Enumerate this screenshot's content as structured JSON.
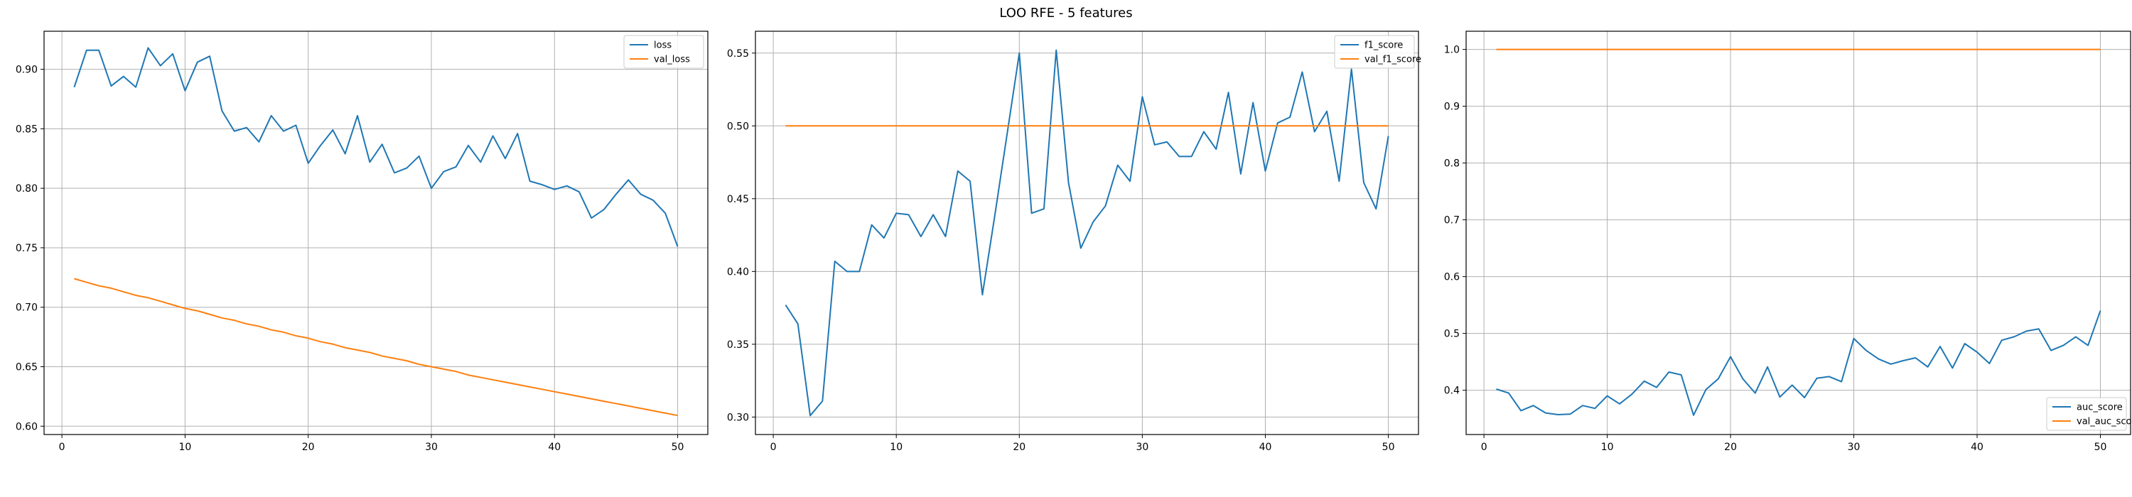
{
  "figure": {
    "title": "LOO RFE - 5 features"
  },
  "colors": {
    "series_1": "#1f77b4",
    "series_2": "#ff7f0e",
    "grid": "#b0b0b0",
    "axis": "#000000"
  },
  "chart_data": [
    {
      "type": "line",
      "title": "",
      "xlabel": "",
      "ylabel": "",
      "xlim": [
        -1.45,
        52.45
      ],
      "ylim": [
        0.593,
        0.932
      ],
      "xticks": [
        0,
        10,
        20,
        30,
        40,
        50
      ],
      "yticks": [
        0.6,
        0.65,
        0.7,
        0.75,
        0.8,
        0.85,
        0.9
      ],
      "ytick_labels": [
        "0.60",
        "0.65",
        "0.70",
        "0.75",
        "0.80",
        "0.85",
        "0.90"
      ],
      "grid": true,
      "legend_position": "upper right",
      "x": [
        1,
        2,
        3,
        4,
        5,
        6,
        7,
        8,
        9,
        10,
        11,
        12,
        13,
        14,
        15,
        16,
        17,
        18,
        19,
        20,
        21,
        22,
        23,
        24,
        25,
        26,
        27,
        28,
        29,
        30,
        31,
        32,
        33,
        34,
        35,
        36,
        37,
        38,
        39,
        40,
        41,
        42,
        43,
        44,
        45,
        46,
        47,
        48,
        49,
        50
      ],
      "series": [
        {
          "name": "loss",
          "values": [
            0.885,
            0.916,
            0.916,
            0.886,
            0.894,
            0.885,
            0.918,
            0.903,
            0.913,
            0.882,
            0.906,
            0.911,
            0.865,
            0.848,
            0.851,
            0.839,
            0.861,
            0.848,
            0.853,
            0.821,
            0.836,
            0.849,
            0.829,
            0.861,
            0.822,
            0.837,
            0.813,
            0.817,
            0.827,
            0.8,
            0.814,
            0.818,
            0.836,
            0.822,
            0.844,
            0.825,
            0.846,
            0.806,
            0.803,
            0.799,
            0.802,
            0.797,
            0.775,
            0.782,
            0.795,
            0.807,
            0.795,
            0.79,
            0.779,
            0.751
          ]
        },
        {
          "name": "val_loss",
          "values": [
            0.724,
            0.721,
            0.718,
            0.716,
            0.713,
            0.71,
            0.708,
            0.705,
            0.702,
            0.699,
            0.697,
            0.694,
            0.691,
            0.689,
            0.686,
            0.684,
            0.681,
            0.679,
            0.676,
            0.674,
            0.671,
            0.669,
            0.666,
            0.664,
            0.662,
            0.659,
            0.657,
            0.655,
            0.652,
            0.65,
            0.648,
            0.646,
            0.643,
            0.641,
            0.639,
            0.637,
            0.635,
            0.633,
            0.631,
            0.629,
            0.627,
            0.625,
            0.623,
            0.621,
            0.619,
            0.617,
            0.615,
            0.613,
            0.611,
            0.609
          ]
        }
      ]
    },
    {
      "type": "line",
      "title": "",
      "xlabel": "",
      "ylabel": "",
      "xlim": [
        -1.45,
        52.45
      ],
      "ylim": [
        0.288,
        0.565
      ],
      "xticks": [
        0,
        10,
        20,
        30,
        40,
        50
      ],
      "yticks": [
        0.3,
        0.35,
        0.4,
        0.45,
        0.5,
        0.55
      ],
      "ytick_labels": [
        "0.30",
        "0.35",
        "0.40",
        "0.45",
        "0.50",
        "0.55"
      ],
      "grid": true,
      "legend_position": "upper right",
      "x": [
        1,
        2,
        3,
        4,
        5,
        6,
        7,
        8,
        9,
        10,
        11,
        12,
        13,
        14,
        15,
        16,
        17,
        18,
        19,
        20,
        21,
        22,
        23,
        24,
        25,
        26,
        27,
        28,
        29,
        30,
        31,
        32,
        33,
        34,
        35,
        36,
        37,
        38,
        39,
        40,
        41,
        42,
        43,
        44,
        45,
        46,
        47,
        48,
        49,
        50
      ],
      "series": [
        {
          "name": "f1_score",
          "values": [
            0.377,
            0.364,
            0.301,
            0.311,
            0.407,
            0.4,
            0.4,
            0.432,
            0.423,
            0.44,
            0.439,
            0.424,
            0.439,
            0.424,
            0.469,
            0.462,
            0.384,
            0.438,
            0.494,
            0.55,
            0.44,
            0.443,
            0.552,
            0.461,
            0.416,
            0.434,
            0.445,
            0.473,
            0.462,
            0.52,
            0.487,
            0.489,
            0.479,
            0.479,
            0.496,
            0.484,
            0.523,
            0.467,
            0.516,
            0.469,
            0.502,
            0.506,
            0.537,
            0.496,
            0.51,
            0.462,
            0.539,
            0.461,
            0.443,
            0.493
          ]
        },
        {
          "name": "val_f1_score",
          "values": [
            0.5,
            0.5,
            0.5,
            0.5,
            0.5,
            0.5,
            0.5,
            0.5,
            0.5,
            0.5,
            0.5,
            0.5,
            0.5,
            0.5,
            0.5,
            0.5,
            0.5,
            0.5,
            0.5,
            0.5,
            0.5,
            0.5,
            0.5,
            0.5,
            0.5,
            0.5,
            0.5,
            0.5,
            0.5,
            0.5,
            0.5,
            0.5,
            0.5,
            0.5,
            0.5,
            0.5,
            0.5,
            0.5,
            0.5,
            0.5,
            0.5,
            0.5,
            0.5,
            0.5,
            0.5,
            0.5,
            0.5,
            0.5,
            0.5,
            0.5
          ]
        }
      ]
    },
    {
      "type": "line",
      "title": "",
      "xlabel": "",
      "ylabel": "",
      "xlim": [
        -1.45,
        52.45
      ],
      "ylim": [
        0.322,
        1.032
      ],
      "xticks": [
        0,
        10,
        20,
        30,
        40,
        50
      ],
      "yticks": [
        0.4,
        0.5,
        0.6,
        0.7,
        0.8,
        0.9,
        1.0
      ],
      "ytick_labels": [
        "0.4",
        "0.5",
        "0.6",
        "0.7",
        "0.8",
        "0.9",
        "1.0"
      ],
      "grid": true,
      "legend_position": "lower right",
      "x": [
        1,
        2,
        3,
        4,
        5,
        6,
        7,
        8,
        9,
        10,
        11,
        12,
        13,
        14,
        15,
        16,
        17,
        18,
        19,
        20,
        21,
        22,
        23,
        24,
        25,
        26,
        27,
        28,
        29,
        30,
        31,
        32,
        33,
        34,
        35,
        36,
        37,
        38,
        39,
        40,
        41,
        42,
        43,
        44,
        45,
        46,
        47,
        48,
        49,
        50
      ],
      "series": [
        {
          "name": "auc_score",
          "values": [
            0.402,
            0.395,
            0.364,
            0.373,
            0.36,
            0.357,
            0.358,
            0.373,
            0.368,
            0.39,
            0.376,
            0.393,
            0.416,
            0.405,
            0.432,
            0.427,
            0.356,
            0.401,
            0.42,
            0.459,
            0.42,
            0.395,
            0.441,
            0.388,
            0.409,
            0.387,
            0.421,
            0.424,
            0.415,
            0.491,
            0.47,
            0.455,
            0.446,
            0.452,
            0.457,
            0.441,
            0.477,
            0.439,
            0.482,
            0.467,
            0.447,
            0.488,
            0.494,
            0.504,
            0.508,
            0.47,
            0.479,
            0.494,
            0.479,
            0.54
          ]
        },
        {
          "name": "val_auc_score",
          "values": [
            1.0,
            1.0,
            1.0,
            1.0,
            1.0,
            1.0,
            1.0,
            1.0,
            1.0,
            1.0,
            1.0,
            1.0,
            1.0,
            1.0,
            1.0,
            1.0,
            1.0,
            1.0,
            1.0,
            1.0,
            1.0,
            1.0,
            1.0,
            1.0,
            1.0,
            1.0,
            1.0,
            1.0,
            1.0,
            1.0,
            1.0,
            1.0,
            1.0,
            1.0,
            1.0,
            1.0,
            1.0,
            1.0,
            1.0,
            1.0,
            1.0,
            1.0,
            1.0,
            1.0,
            1.0,
            1.0,
            1.0,
            1.0,
            1.0,
            1.0
          ]
        }
      ]
    }
  ]
}
